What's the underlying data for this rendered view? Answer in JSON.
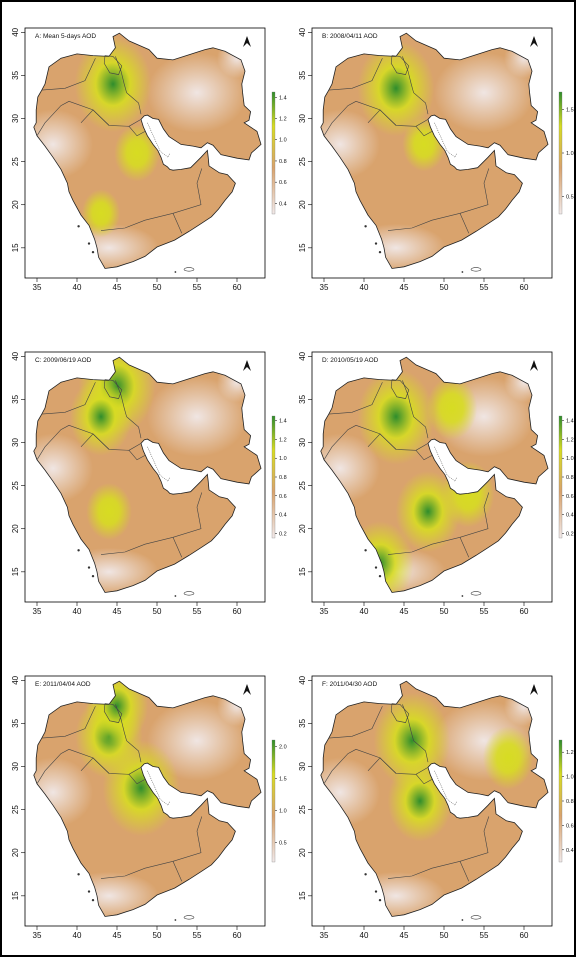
{
  "figure": {
    "panels": [
      {
        "id": "A",
        "title": "A: Mean 5-days AOD",
        "x_ticks": [
          "35",
          "40",
          "45",
          "50",
          "55",
          "60"
        ],
        "y_ticks": [
          "15",
          "20",
          "25",
          "30",
          "35",
          "40"
        ],
        "legend_ticks": [
          "1.4",
          "1.2",
          "1.0",
          "0.8",
          "0.6",
          "0.4"
        ],
        "legend_range": [
          0.3,
          1.45
        ],
        "hotspots": [
          {
            "lon": 44.5,
            "lat": 34,
            "level": 1.0
          },
          {
            "lon": 47.5,
            "lat": 26,
            "level": 0.35
          },
          {
            "lon": 43,
            "lat": 19,
            "level": 0.2
          }
        ]
      },
      {
        "id": "B",
        "title": "B: 2008/04/11 AOD",
        "x_ticks": [
          "35",
          "40",
          "45",
          "50",
          "55",
          "60"
        ],
        "y_ticks": [
          "15",
          "20",
          "25",
          "30",
          "35",
          "40"
        ],
        "legend_ticks": [
          "1.5",
          "1.0",
          "0.5"
        ],
        "legend_range": [
          0.3,
          1.7
        ],
        "hotspots": [
          {
            "lon": 44,
            "lat": 33.5,
            "level": 1.0
          },
          {
            "lon": 47.5,
            "lat": 27,
            "level": 0.3
          }
        ]
      },
      {
        "id": "C",
        "title": "C: 2009/06/19 AOD",
        "x_ticks": [
          "35",
          "40",
          "45",
          "50",
          "55",
          "60"
        ],
        "y_ticks": [
          "15",
          "20",
          "25",
          "30",
          "35",
          "40"
        ],
        "legend_ticks": [
          "1.4",
          "1.2",
          "1.0",
          "0.8",
          "0.6",
          "0.4",
          "0.2"
        ],
        "legend_range": [
          0.15,
          1.45
        ],
        "hotspots": [
          {
            "lon": 45,
            "lat": 36.5,
            "level": 1.0
          },
          {
            "lon": 43,
            "lat": 33,
            "level": 0.7
          },
          {
            "lon": 44,
            "lat": 22,
            "level": 0.35
          }
        ]
      },
      {
        "id": "D",
        "title": "D: 2010/05/19 AOD",
        "x_ticks": [
          "35",
          "40",
          "45",
          "50",
          "55",
          "60"
        ],
        "y_ticks": [
          "15",
          "20",
          "25",
          "30",
          "35",
          "40"
        ],
        "legend_ticks": [
          "1.4",
          "1.2",
          "1.0",
          "0.8",
          "0.6",
          "0.4",
          "0.2"
        ],
        "legend_range": [
          0.15,
          1.45
        ],
        "hotspots": [
          {
            "lon": 44,
            "lat": 33,
            "level": 1.0
          },
          {
            "lon": 48,
            "lat": 22,
            "level": 0.75
          },
          {
            "lon": 42,
            "lat": 16,
            "level": 0.8
          },
          {
            "lon": 53,
            "lat": 24,
            "level": 0.5
          },
          {
            "lon": 51,
            "lat": 34,
            "level": 0.45
          }
        ]
      },
      {
        "id": "E",
        "title": "E: 2011/04/04 AOD",
        "x_ticks": [
          "35",
          "40",
          "45",
          "50",
          "55",
          "60"
        ],
        "y_ticks": [
          "15",
          "20",
          "25",
          "30",
          "35",
          "40"
        ],
        "legend_ticks": [
          "2.0",
          "1.5",
          "1.0",
          "0.5"
        ],
        "legend_range": [
          0.2,
          2.1
        ],
        "hotspots": [
          {
            "lon": 48,
            "lat": 27.5,
            "level": 1.0
          },
          {
            "lon": 44,
            "lat": 33.5,
            "level": 0.8
          },
          {
            "lon": 45,
            "lat": 37,
            "level": 0.7
          }
        ]
      },
      {
        "id": "F",
        "title": "F: 2011/04/30 AOD",
        "x_ticks": [
          "35",
          "40",
          "45",
          "50",
          "55",
          "60"
        ],
        "y_ticks": [
          "15",
          "20",
          "25",
          "30",
          "35",
          "40"
        ],
        "legend_ticks": [
          "1.2",
          "1.0",
          "0.8",
          "0.6",
          "0.4"
        ],
        "legend_range": [
          0.3,
          1.3
        ],
        "hotspots": [
          {
            "lon": 46,
            "lat": 33,
            "level": 1.0
          },
          {
            "lon": 47,
            "lat": 26,
            "level": 0.75
          },
          {
            "lon": 58,
            "lat": 31,
            "level": 0.45
          }
        ]
      }
    ],
    "colors": {
      "low": "#f1e9e9",
      "mid": "#d9a36d",
      "yellow": "#d7dc22",
      "high": "#2f8d2c",
      "border": "#222222"
    }
  }
}
